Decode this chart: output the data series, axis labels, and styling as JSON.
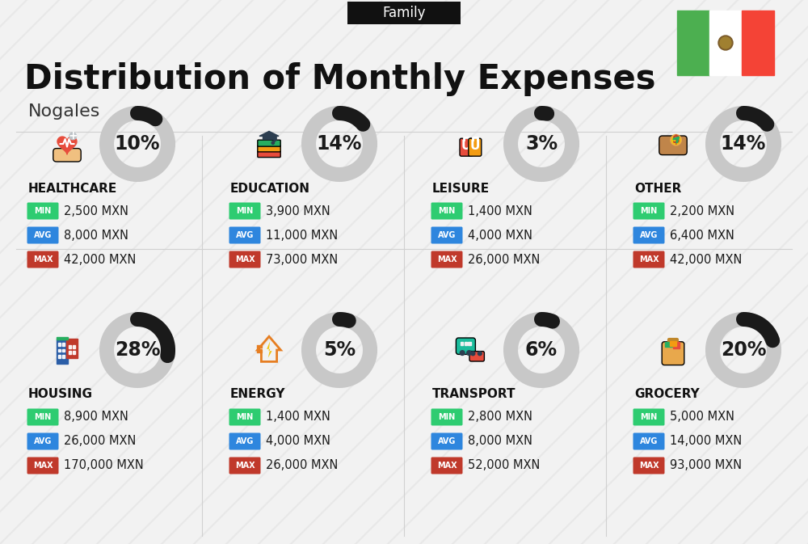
{
  "title": "Distribution of Monthly Expenses",
  "subtitle": "Family",
  "city": "Nogales",
  "background_color": "#f2f2f2",
  "categories": [
    {
      "name": "HOUSING",
      "percent": 28,
      "min": "8,900 MXN",
      "avg": "26,000 MXN",
      "max": "170,000 MXN",
      "col": 0,
      "row": 0
    },
    {
      "name": "ENERGY",
      "percent": 5,
      "min": "1,400 MXN",
      "avg": "4,000 MXN",
      "max": "26,000 MXN",
      "col": 1,
      "row": 0
    },
    {
      "name": "TRANSPORT",
      "percent": 6,
      "min": "2,800 MXN",
      "avg": "8,000 MXN",
      "max": "52,000 MXN",
      "col": 2,
      "row": 0
    },
    {
      "name": "GROCERY",
      "percent": 20,
      "min": "5,000 MXN",
      "avg": "14,000 MXN",
      "max": "93,000 MXN",
      "col": 3,
      "row": 0
    },
    {
      "name": "HEALTHCARE",
      "percent": 10,
      "min": "2,500 MXN",
      "avg": "8,000 MXN",
      "max": "42,000 MXN",
      "col": 0,
      "row": 1
    },
    {
      "name": "EDUCATION",
      "percent": 14,
      "min": "3,900 MXN",
      "avg": "11,000 MXN",
      "max": "73,000 MXN",
      "col": 1,
      "row": 1
    },
    {
      "name": "LEISURE",
      "percent": 3,
      "min": "1,400 MXN",
      "avg": "4,000 MXN",
      "max": "26,000 MXN",
      "col": 2,
      "row": 1
    },
    {
      "name": "OTHER",
      "percent": 14,
      "min": "2,200 MXN",
      "avg": "6,400 MXN",
      "max": "42,000 MXN",
      "col": 3,
      "row": 1
    }
  ],
  "min_color": "#2ecc71",
  "avg_color": "#2e86de",
  "max_color": "#c0392b",
  "donut_bg_color": "#c8c8c8",
  "donut_arc_color": "#1a1a1a",
  "title_fontsize": 30,
  "subtitle_fontsize": 12,
  "city_fontsize": 16,
  "category_fontsize": 11,
  "percent_fontsize": 17,
  "value_fontsize": 10.5,
  "badge_fontsize": 7,
  "flag_green": "#4caf50",
  "flag_white": "#ffffff",
  "flag_red": "#f44336"
}
